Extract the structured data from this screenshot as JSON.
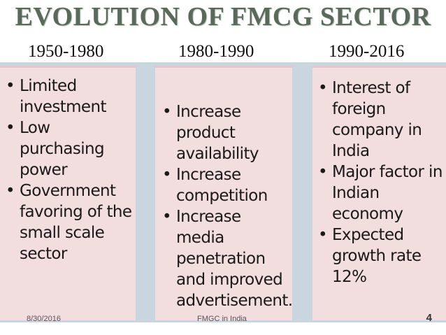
{
  "title": "EVOLUTION OF FMCG SECTOR",
  "columns": [
    {
      "period": "1950-1980",
      "bullets": [
        "Limited investment",
        "Low purchasing power",
        "Government favoring of the small scale sector"
      ]
    },
    {
      "period": "1980-1990",
      "bullets": [
        "Increase product availability",
        "Increase competition",
        "Increase media penetration and improved advertisement."
      ]
    },
    {
      "period": "1990-2016",
      "bullets": [
        "Interest of foreign company in India",
        "Major factor in Indian economy",
        "Expected growth rate 12%"
      ]
    }
  ],
  "footer": {
    "date": "8/30/2016",
    "center": "FMGC in India",
    "page_number": "4"
  }
}
